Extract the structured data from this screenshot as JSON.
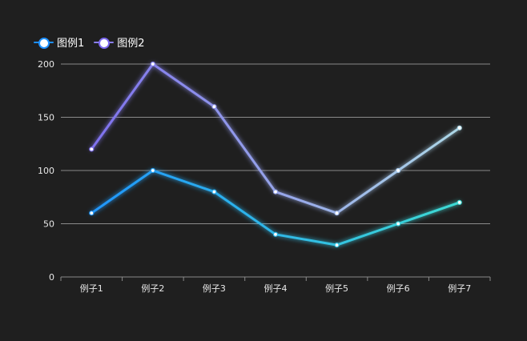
{
  "chart_data": {
    "type": "line",
    "categories": [
      "例子1",
      "例子2",
      "例子3",
      "例子4",
      "例子5",
      "例子6",
      "例子7"
    ],
    "series": [
      {
        "name": "图例1",
        "values": [
          60,
          100,
          80,
          40,
          30,
          50,
          70
        ],
        "color_start": "#1e90ff",
        "color_end": "#40e0d0"
      },
      {
        "name": "图例2",
        "values": [
          120,
          200,
          160,
          80,
          60,
          100,
          140
        ],
        "color_start": "#7b68ee",
        "color_end": "#b0e0e6"
      }
    ],
    "y_ticks": [
      0,
      50,
      100,
      150,
      200
    ],
    "ylim": [
      0,
      200
    ],
    "title": "",
    "xlabel": "",
    "ylabel": "",
    "grid": true,
    "legend_position": "top-left",
    "colors": {
      "background": "#1f1f1f",
      "grid": "#8a8a8a",
      "text": "#e8e8e8",
      "legend_text": "#ffffff"
    }
  }
}
